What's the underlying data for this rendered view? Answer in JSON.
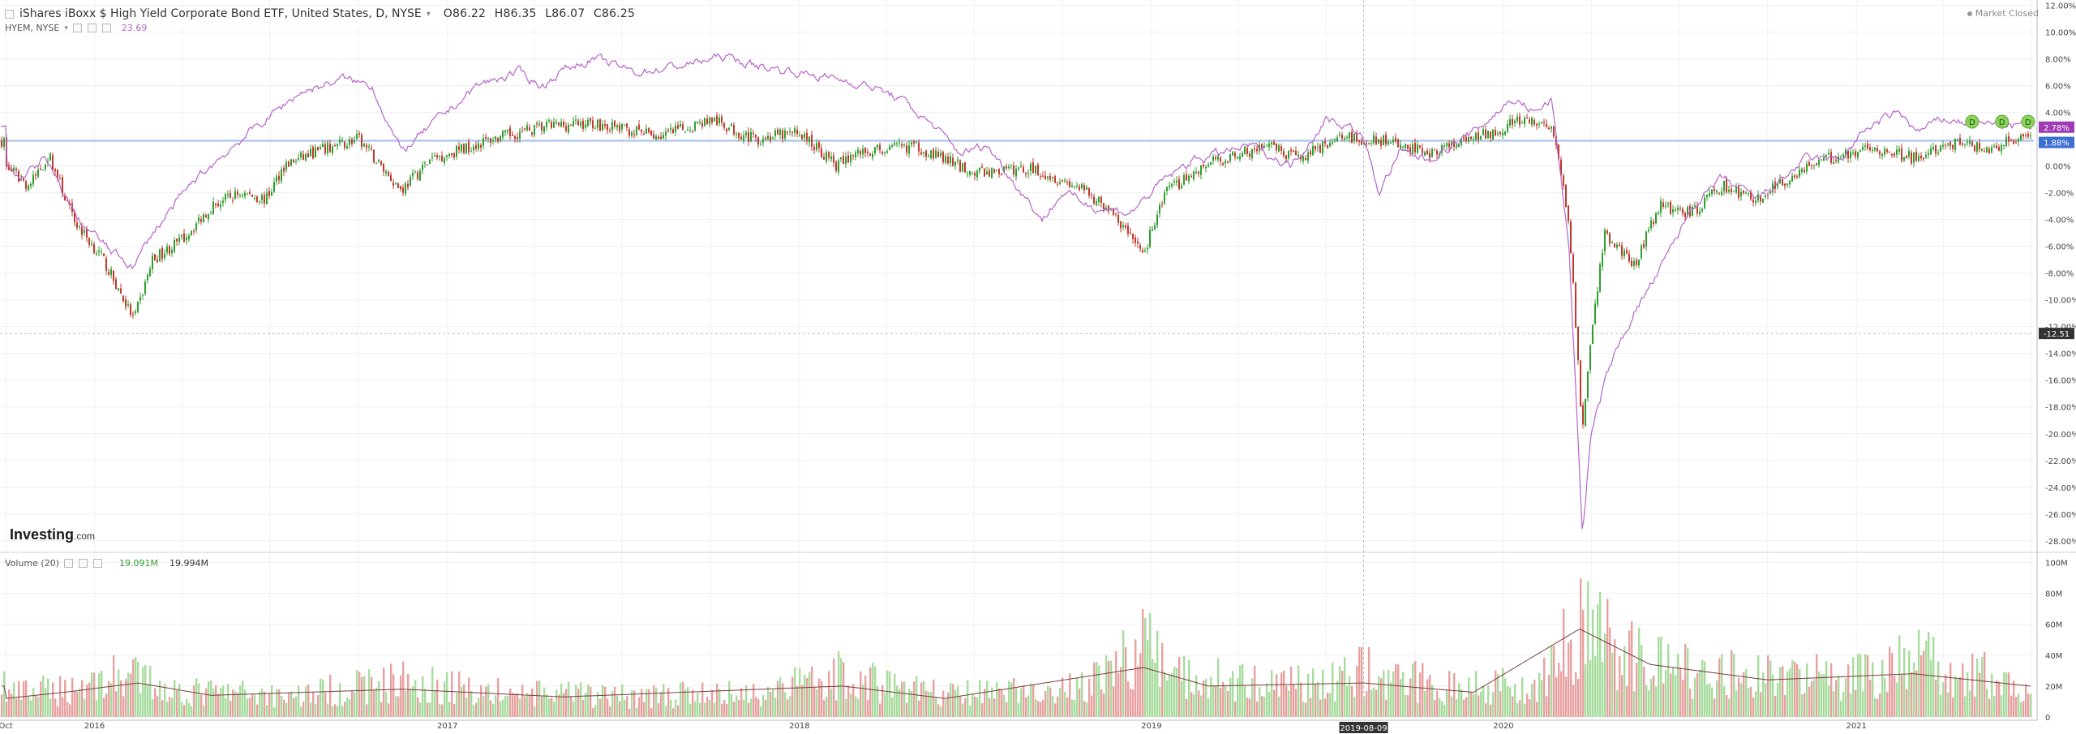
{
  "header": {
    "symbol_title": "iShares iBoxx $ High Yield Corporate Bond ETF, United States, D, NYSE",
    "open": "O86.22",
    "high": "H86.35",
    "low": "L86.07",
    "close": "C86.25",
    "compare_label": "HYEM, NYSE",
    "compare_value": "23.69",
    "market_status": "Market Closed"
  },
  "volume_legend": {
    "label": "Volume (20)",
    "value1": "19.091M",
    "value2": "19.994M"
  },
  "watermark": {
    "brand": "Investing",
    "suffix": ".com"
  },
  "colors": {
    "up": "#2e9e2e",
    "down": "#c0392b",
    "compare": "#b565c9",
    "vol_up": "#a8dc9f",
    "vol_down": "#e8a1a1",
    "vol_ma": "#7a3d3d",
    "hline": "#a9c4e8"
  },
  "badges": {
    "compare_last": "2.78%",
    "main_last": "1.88%",
    "crosshair_y": "-12.51",
    "crosshair_x": "2019-08-09"
  },
  "chart_data": [
    {
      "type": "line",
      "title": "iShares iBoxx $ High Yield Corporate Bond ETF, United States, D, NYSE",
      "y_unit": "% change",
      "ylim": [
        -28.8,
        12.4
      ],
      "y_ticks": [
        "12.00%",
        "10.00%",
        "8.00%",
        "6.00%",
        "4.00%",
        "2.00%",
        "0.00%",
        "-2.00%",
        "-4.00%",
        "-6.00%",
        "-8.00%",
        "-10.00%",
        "-12.00%",
        "-14.00%",
        "-16.00%",
        "-18.00%",
        "-20.00%",
        "-22.00%",
        "-24.00%",
        "-26.00%",
        "-28.00%"
      ],
      "x_ticks": [
        "Oct",
        "2016",
        "2017",
        "2018",
        "2019",
        "2020",
        "2021"
      ],
      "grid": true,
      "series": [
        {
          "name": "iShares iBoxx $ High Yield Corporate Bond ETF",
          "points": [
            [
              "2015-10-01",
              0
            ],
            [
              "2015-10-25",
              -1.5
            ],
            [
              "2015-11-15",
              0.8
            ],
            [
              "2015-12-10",
              -4
            ],
            [
              "2016-01-10",
              -7
            ],
            [
              "2016-02-11",
              -11.5
            ],
            [
              "2016-03-01",
              -7
            ],
            [
              "2016-04-01",
              -5.5
            ],
            [
              "2016-05-01",
              -3
            ],
            [
              "2016-06-01",
              -2
            ],
            [
              "2016-06-27",
              -2.5
            ],
            [
              "2016-07-15",
              0
            ],
            [
              "2016-08-15",
              1
            ],
            [
              "2016-10-01",
              2
            ],
            [
              "2016-11-14",
              -1.8
            ],
            [
              "2016-12-15",
              0.5
            ],
            [
              "2017-02-15",
              2
            ],
            [
              "2017-04-15",
              3
            ],
            [
              "2017-06-01",
              3.2
            ],
            [
              "2017-08-10",
              2.2
            ],
            [
              "2017-10-01",
              3.5
            ],
            [
              "2017-11-15",
              2
            ],
            [
              "2018-01-01",
              2.5
            ],
            [
              "2018-02-09",
              0
            ],
            [
              "2018-03-01",
              1
            ],
            [
              "2018-05-01",
              1.5
            ],
            [
              "2018-07-01",
              -0.5
            ],
            [
              "2018-09-01",
              -0.2
            ],
            [
              "2018-10-15",
              -1.5
            ],
            [
              "2018-11-15",
              -3
            ],
            [
              "2018-12-24",
              -6.5
            ],
            [
              "2019-01-15",
              -2
            ],
            [
              "2019-03-01",
              0.2
            ],
            [
              "2019-05-01",
              1.5
            ],
            [
              "2019-06-01",
              0.5
            ],
            [
              "2019-07-15",
              2.2
            ],
            [
              "2019-09-01",
              1.8
            ],
            [
              "2019-10-15",
              1
            ],
            [
              "2019-12-01",
              2
            ],
            [
              "2020-01-15",
              3.3
            ],
            [
              "2020-02-20",
              3
            ],
            [
              "2020-03-09",
              -4
            ],
            [
              "2020-03-23",
              -20
            ],
            [
              "2020-04-01",
              -13
            ],
            [
              "2020-04-15",
              -5
            ],
            [
              "2020-05-15",
              -7.5
            ],
            [
              "2020-06-10",
              -3
            ],
            [
              "2020-07-15",
              -3.5
            ],
            [
              "2020-08-15",
              -1.5
            ],
            [
              "2020-09-20",
              -2.5
            ],
            [
              "2020-11-10",
              0
            ],
            [
              "2021-01-15",
              1.5
            ],
            [
              "2021-03-05",
              0.5
            ],
            [
              "2021-04-15",
              1.8
            ],
            [
              "2021-05-12",
              1.2
            ],
            [
              "2021-06-15",
              2.0
            ],
            [
              "2021-06-30",
              1.88
            ]
          ]
        },
        {
          "name": "HYEM, NYSE",
          "points": [
            [
              "2015-10-01",
              0
            ],
            [
              "2015-10-15",
              -1
            ],
            [
              "2015-11-10",
              0.5
            ],
            [
              "2015-12-15",
              -4
            ],
            [
              "2016-01-20",
              -6.5
            ],
            [
              "2016-02-11",
              -7.5
            ],
            [
              "2016-03-01",
              -5
            ],
            [
              "2016-04-15",
              -1
            ],
            [
              "2016-06-01",
              2
            ],
            [
              "2016-08-01",
              5.5
            ],
            [
              "2016-09-15",
              6.5
            ],
            [
              "2016-10-15",
              6
            ],
            [
              "2016-11-14",
              1
            ],
            [
              "2016-12-15",
              3
            ],
            [
              "2017-02-01",
              6
            ],
            [
              "2017-03-15",
              7
            ],
            [
              "2017-04-10",
              6
            ],
            [
              "2017-05-01",
              7.2
            ],
            [
              "2017-06-01",
              8
            ],
            [
              "2017-07-15",
              7
            ],
            [
              "2017-09-01",
              7.5
            ],
            [
              "2017-10-15",
              8.2
            ],
            [
              "2017-11-15",
              7.5
            ],
            [
              "2018-01-01",
              7
            ],
            [
              "2018-02-09",
              6.5
            ],
            [
              "2018-03-15",
              6
            ],
            [
              "2018-04-15",
              5
            ],
            [
              "2018-05-20",
              3
            ],
            [
              "2018-06-15",
              1
            ],
            [
              "2018-07-15",
              1.5
            ],
            [
              "2018-08-15",
              -1.5
            ],
            [
              "2018-09-10",
              -4
            ],
            [
              "2018-10-01",
              -2
            ],
            [
              "2018-11-01",
              -3
            ],
            [
              "2018-12-10",
              -3.5
            ],
            [
              "2019-01-15",
              -1
            ],
            [
              "2019-02-15",
              0.5
            ],
            [
              "2019-04-15",
              1.5
            ],
            [
              "2019-05-25",
              0
            ],
            [
              "2019-07-01",
              3.5
            ],
            [
              "2019-07-25",
              3
            ],
            [
              "2019-08-09",
              2
            ],
            [
              "2019-08-25",
              -2
            ],
            [
              "2019-09-15",
              1
            ],
            [
              "2019-10-15",
              0.5
            ],
            [
              "2019-12-01",
              2.5
            ],
            [
              "2020-01-10",
              5
            ],
            [
              "2020-02-05",
              4
            ],
            [
              "2020-02-20",
              5
            ],
            [
              "2020-03-09",
              -6
            ],
            [
              "2020-03-23",
              -27.5
            ],
            [
              "2020-04-01",
              -20
            ],
            [
              "2020-04-20",
              -15
            ],
            [
              "2020-05-15",
              -11
            ],
            [
              "2020-06-10",
              -8
            ],
            [
              "2020-07-15",
              -3
            ],
            [
              "2020-08-15",
              -1
            ],
            [
              "2020-09-20",
              -2.5
            ],
            [
              "2020-11-10",
              0.5
            ],
            [
              "2020-12-15",
              0.5
            ],
            [
              "2021-01-15",
              3
            ],
            [
              "2021-02-15",
              4
            ],
            [
              "2021-03-05",
              2.5
            ],
            [
              "2021-04-01",
              3.5
            ],
            [
              "2021-05-01",
              3.2
            ],
            [
              "2021-06-15",
              3.0
            ],
            [
              "2021-06-30",
              2.78
            ]
          ]
        }
      ],
      "horizontal_lines": [
        1.88,
        -12.51
      ],
      "dividend_markers": [
        "D",
        "D",
        "D"
      ]
    },
    {
      "type": "bar",
      "title": "Volume (20)",
      "y_ticks": [
        "100M",
        "80M",
        "60M",
        "40M",
        "20M",
        "0"
      ],
      "ylim": [
        0,
        105
      ],
      "y_unit": "M shares",
      "volume_profile": [
        [
          "2015-10-01",
          16
        ],
        [
          "2015-12-01",
          20
        ],
        [
          "2016-02-01",
          30
        ],
        [
          "2016-04-01",
          18
        ],
        [
          "2016-08-01",
          16
        ],
        [
          "2016-11-15",
          26
        ],
        [
          "2017-03-01",
          17
        ],
        [
          "2017-07-01",
          15
        ],
        [
          "2017-11-15",
          17
        ],
        [
          "2018-02-09",
          30
        ],
        [
          "2018-06-01",
          16
        ],
        [
          "2018-10-15",
          20
        ],
        [
          "2018-12-24",
          50
        ],
        [
          "2019-02-01",
          30
        ],
        [
          "2019-05-15",
          22
        ],
        [
          "2019-08-09",
          32
        ],
        [
          "2019-11-01",
          22
        ],
        [
          "2020-02-01",
          24
        ],
        [
          "2020-03-20",
          65
        ],
        [
          "2020-05-01",
          48
        ],
        [
          "2020-07-01",
          33
        ],
        [
          "2020-10-01",
          30
        ],
        [
          "2021-01-01",
          28
        ],
        [
          "2021-03-01",
          40
        ],
        [
          "2021-06-30",
          25
        ]
      ],
      "volume_ma_profile": [
        [
          "2015-10-01",
          12
        ],
        [
          "2015-12-01",
          16
        ],
        [
          "2016-02-15",
          22
        ],
        [
          "2016-05-01",
          14
        ],
        [
          "2016-11-15",
          18
        ],
        [
          "2017-05-01",
          13
        ],
        [
          "2018-02-15",
          20
        ],
        [
          "2018-06-01",
          12
        ],
        [
          "2018-12-24",
          32
        ],
        [
          "2019-03-01",
          20
        ],
        [
          "2019-08-09",
          22
        ],
        [
          "2019-12-01",
          16
        ],
        [
          "2020-03-20",
          57
        ],
        [
          "2020-06-01",
          34
        ],
        [
          "2020-10-01",
          24
        ],
        [
          "2021-03-01",
          28
        ],
        [
          "2021-06-30",
          20
        ]
      ]
    }
  ]
}
